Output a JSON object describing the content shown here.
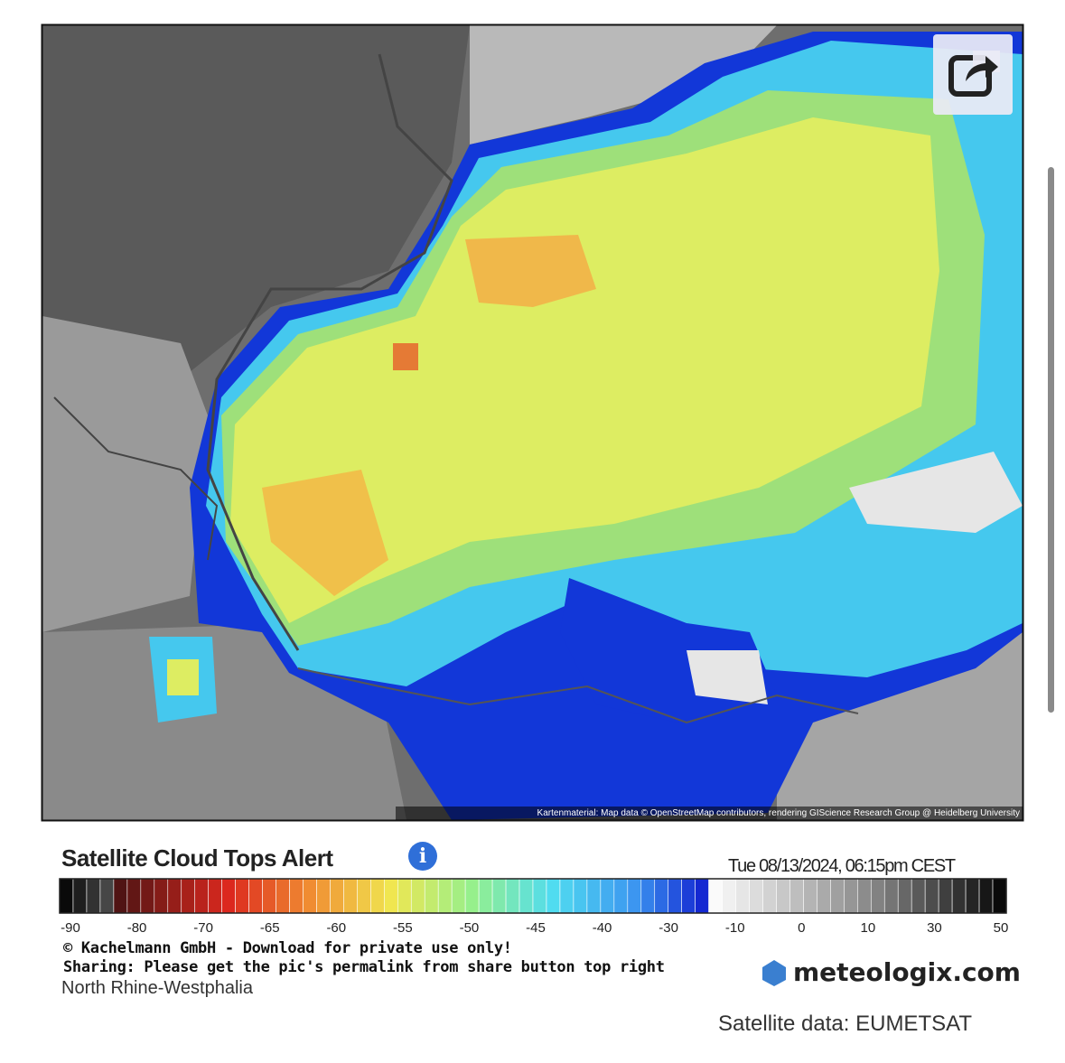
{
  "map": {
    "attribution": "Kartenmaterial: Map data © OpenStreetMap contributors, rendering GIScience Research Group @ Heidelberg University"
  },
  "legend": {
    "title": "Satellite Cloud Tops Alert",
    "info": "i",
    "timestamp": "Tue 08/13/2024, 06:15pm CEST",
    "scale_labels": [
      "-90",
      "-80",
      "-70",
      "-65",
      "-60",
      "-55",
      "-50",
      "-45",
      "-40",
      "-30",
      "-10",
      "0",
      "10",
      "30",
      "50"
    ]
  },
  "footer": {
    "copyright": "© Kachelmann GmbH - Download for private use only!",
    "sharing": "Sharing: Please get the pic's permalink from share button top right",
    "region": "North Rhine-Westphalia",
    "logo": "meteologix.com",
    "source": "Satellite data: EUMETSAT"
  }
}
